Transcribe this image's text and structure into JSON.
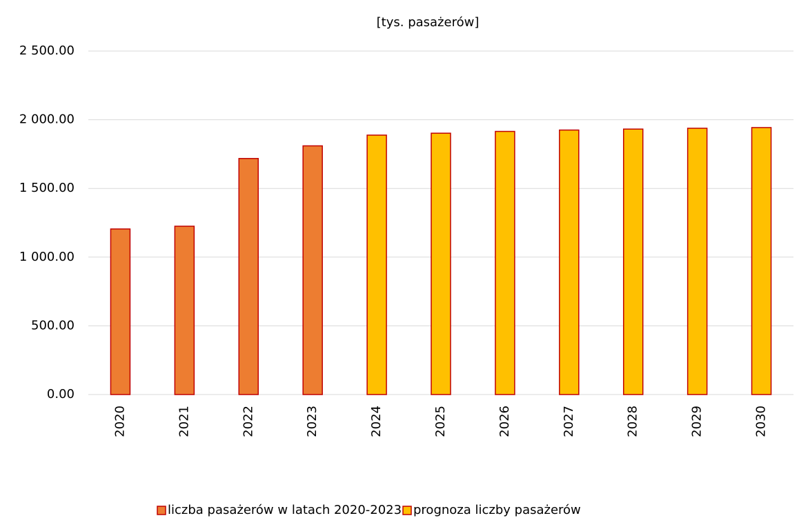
{
  "chart_data": {
    "type": "bar",
    "title": "[tys. pasażerów]",
    "categories": [
      "2020",
      "2021",
      "2022",
      "2023",
      "2024",
      "2025",
      "2026",
      "2027",
      "2028",
      "2029",
      "2030"
    ],
    "series": [
      {
        "name": "liczba pasażerów w latach 2020-2023",
        "color": "#ED7D31",
        "values": [
          1205,
          1225,
          1718,
          1810,
          null,
          null,
          null,
          null,
          null,
          null,
          null
        ]
      },
      {
        "name": "prognoza liczby pasażerów",
        "color": "#FFC000",
        "values": [
          null,
          null,
          null,
          null,
          1888,
          1902,
          1915,
          1925,
          1932,
          1938,
          1943
        ]
      }
    ],
    "bar_edge_color": "#C00000",
    "ylim": [
      0,
      2500
    ],
    "yticks": [
      {
        "value": 0,
        "label": "0.00"
      },
      {
        "value": 500,
        "label": "500.00"
      },
      {
        "value": 1000,
        "label": "1 000.00"
      },
      {
        "value": 1500,
        "label": "1 500.00"
      },
      {
        "value": 2000,
        "label": "2 000.00"
      },
      {
        "value": 2500,
        "label": "2 500.00"
      }
    ],
    "grid": true,
    "legend": "bottom"
  }
}
